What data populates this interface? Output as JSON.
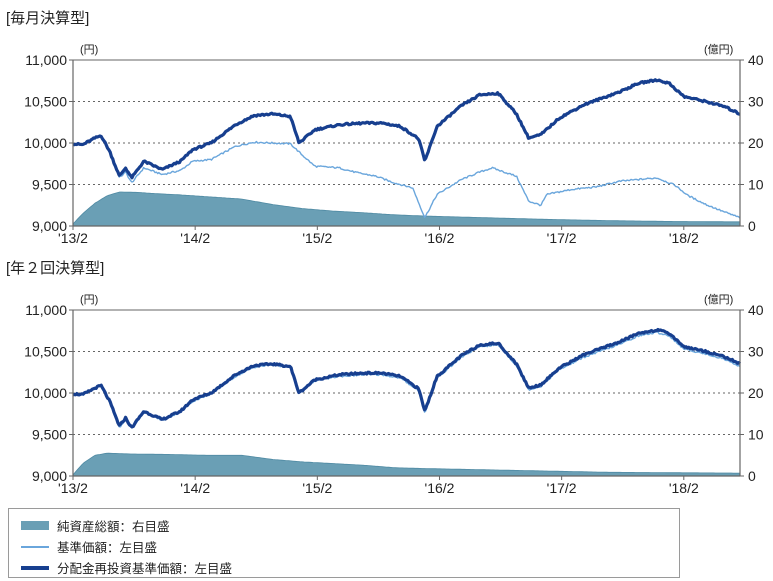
{
  "colors": {
    "area": "#6a9fb5",
    "area_edge": "#4f8aa3",
    "base_price": "#6aa6dc",
    "reinvested": "#173f8f",
    "grid": "#666666",
    "axis": "#666666"
  },
  "chart_data": [
    {
      "type": "line",
      "title": "[毎月決算型]",
      "left_unit": "(円)",
      "right_unit": "(億円)",
      "x_ticks": [
        "'13/2",
        "'14/2",
        "'15/2",
        "'16/2",
        "'17/2",
        "'18/2"
      ],
      "y_left_ticks": [
        "9,000",
        "9,500",
        "10,000",
        "10,500",
        "11,000"
      ],
      "y_right_ticks": [
        "0",
        "10",
        "20",
        "30",
        "40"
      ],
      "ylim_left": [
        9000,
        11000
      ],
      "ylim_right": [
        0,
        40
      ],
      "xlim": [
        2013.12,
        2018.58
      ],
      "grid": "horizontal-dotted",
      "series": [
        {
          "key": "net_assets",
          "kind": "area",
          "axis": "right",
          "points": [
            [
              2013.12,
              0.5
            ],
            [
              2013.2,
              3
            ],
            [
              2013.3,
              5.5
            ],
            [
              2013.4,
              7.3
            ],
            [
              2013.5,
              8.2
            ],
            [
              2013.65,
              8.1
            ],
            [
              2013.8,
              7.8
            ],
            [
              2014.0,
              7.5
            ],
            [
              2014.25,
              7.0
            ],
            [
              2014.5,
              6.5
            ],
            [
              2014.75,
              5.2
            ],
            [
              2015.0,
              4.2
            ],
            [
              2015.25,
              3.6
            ],
            [
              2015.5,
              3.2
            ],
            [
              2015.75,
              2.7
            ],
            [
              2016.0,
              2.4
            ],
            [
              2016.5,
              2.0
            ],
            [
              2017.0,
              1.6
            ],
            [
              2017.5,
              1.3
            ],
            [
              2018.0,
              1.1
            ],
            [
              2018.58,
              1.0
            ]
          ]
        },
        {
          "key": "base_price",
          "kind": "line",
          "axis": "left",
          "points": [
            [
              2013.12,
              9990
            ],
            [
              2013.2,
              9980
            ],
            [
              2013.3,
              10060
            ],
            [
              2013.35,
              10090
            ],
            [
              2013.42,
              9900
            ],
            [
              2013.5,
              9580
            ],
            [
              2013.55,
              9650
            ],
            [
              2013.6,
              9520
            ],
            [
              2013.7,
              9700
            ],
            [
              2013.85,
              9620
            ],
            [
              2014.0,
              9670
            ],
            [
              2014.1,
              9780
            ],
            [
              2014.25,
              9800
            ],
            [
              2014.45,
              9960
            ],
            [
              2014.6,
              10010
            ],
            [
              2014.75,
              10000
            ],
            [
              2014.9,
              9990
            ],
            [
              2015.0,
              9850
            ],
            [
              2015.1,
              9720
            ],
            [
              2015.3,
              9700
            ],
            [
              2015.45,
              9640
            ],
            [
              2015.6,
              9600
            ],
            [
              2015.75,
              9520
            ],
            [
              2015.9,
              9460
            ],
            [
              2016.0,
              9100
            ],
            [
              2016.1,
              9380
            ],
            [
              2016.3,
              9560
            ],
            [
              2016.45,
              9650
            ],
            [
              2016.55,
              9700
            ],
            [
              2016.75,
              9600
            ],
            [
              2016.85,
              9300
            ],
            [
              2016.95,
              9250
            ],
            [
              2017.0,
              9380
            ],
            [
              2017.2,
              9440
            ],
            [
              2017.4,
              9470
            ],
            [
              2017.6,
              9540
            ],
            [
              2017.75,
              9560
            ],
            [
              2017.9,
              9580
            ],
            [
              2018.05,
              9490
            ],
            [
              2018.15,
              9370
            ],
            [
              2018.3,
              9260
            ],
            [
              2018.45,
              9170
            ],
            [
              2018.58,
              9100
            ]
          ]
        },
        {
          "key": "reinvested",
          "kind": "line",
          "axis": "left",
          "points": [
            [
              2013.12,
              9990
            ],
            [
              2013.2,
              9980
            ],
            [
              2013.3,
              10060
            ],
            [
              2013.35,
              10090
            ],
            [
              2013.42,
              9900
            ],
            [
              2013.5,
              9600
            ],
            [
              2013.55,
              9700
            ],
            [
              2013.6,
              9580
            ],
            [
              2013.7,
              9780
            ],
            [
              2013.85,
              9680
            ],
            [
              2014.0,
              9780
            ],
            [
              2014.1,
              9920
            ],
            [
              2014.25,
              10000
            ],
            [
              2014.45,
              10220
            ],
            [
              2014.6,
              10330
            ],
            [
              2014.75,
              10350
            ],
            [
              2014.9,
              10320
            ],
            [
              2014.97,
              10000
            ],
            [
              2015.1,
              10160
            ],
            [
              2015.3,
              10220
            ],
            [
              2015.5,
              10240
            ],
            [
              2015.65,
              10240
            ],
            [
              2015.8,
              10200
            ],
            [
              2015.95,
              10050
            ],
            [
              2016.0,
              9780
            ],
            [
              2016.1,
              10200
            ],
            [
              2016.3,
              10450
            ],
            [
              2016.45,
              10580
            ],
            [
              2016.6,
              10600
            ],
            [
              2016.75,
              10350
            ],
            [
              2016.85,
              10060
            ],
            [
              2016.95,
              10100
            ],
            [
              2017.1,
              10300
            ],
            [
              2017.3,
              10460
            ],
            [
              2017.45,
              10540
            ],
            [
              2017.6,
              10620
            ],
            [
              2017.75,
              10720
            ],
            [
              2017.9,
              10760
            ],
            [
              2018.0,
              10720
            ],
            [
              2018.12,
              10560
            ],
            [
              2018.3,
              10500
            ],
            [
              2018.45,
              10440
            ],
            [
              2018.58,
              10350
            ]
          ]
        }
      ]
    },
    {
      "type": "line",
      "title": "[年２回決算型]",
      "left_unit": "(円)",
      "right_unit": "(億円)",
      "x_ticks": [
        "'13/2",
        "'14/2",
        "'15/2",
        "'16/2",
        "'17/2",
        "'18/2"
      ],
      "y_left_ticks": [
        "9,000",
        "9,500",
        "10,000",
        "10,500",
        "11,000"
      ],
      "y_right_ticks": [
        "0",
        "10",
        "20",
        "30",
        "40"
      ],
      "ylim_left": [
        9000,
        11000
      ],
      "ylim_right": [
        0,
        40
      ],
      "xlim": [
        2013.12,
        2018.58
      ],
      "grid": "horizontal-dotted",
      "series": [
        {
          "key": "net_assets",
          "kind": "area",
          "axis": "right",
          "points": [
            [
              2013.12,
              0.3
            ],
            [
              2013.2,
              3
            ],
            [
              2013.3,
              5.0
            ],
            [
              2013.4,
              5.5
            ],
            [
              2013.6,
              5.3
            ],
            [
              2013.9,
              5.2
            ],
            [
              2014.2,
              5.0
            ],
            [
              2014.5,
              5.0
            ],
            [
              2014.6,
              4.6
            ],
            [
              2014.75,
              4.0
            ],
            [
              2015.0,
              3.4
            ],
            [
              2015.25,
              3.0
            ],
            [
              2015.5,
              2.6
            ],
            [
              2015.75,
              2.0
            ],
            [
              2016.0,
              1.8
            ],
            [
              2016.5,
              1.5
            ],
            [
              2017.0,
              1.2
            ],
            [
              2017.5,
              0.9
            ],
            [
              2018.0,
              0.8
            ],
            [
              2018.58,
              0.7
            ]
          ]
        },
        {
          "key": "base_price",
          "kind": "line",
          "axis": "left",
          "points": [
            [
              2013.12,
              9990
            ],
            [
              2013.2,
              9980
            ],
            [
              2013.3,
              10060
            ],
            [
              2013.35,
              10090
            ],
            [
              2013.42,
              9900
            ],
            [
              2013.5,
              9580
            ],
            [
              2013.55,
              9680
            ],
            [
              2013.6,
              9570
            ],
            [
              2013.7,
              9770
            ],
            [
              2013.85,
              9670
            ],
            [
              2014.0,
              9770
            ],
            [
              2014.1,
              9900
            ],
            [
              2014.25,
              9990
            ],
            [
              2014.45,
              10200
            ],
            [
              2014.6,
              10310
            ],
            [
              2014.75,
              10340
            ],
            [
              2014.9,
              10310
            ],
            [
              2014.97,
              9990
            ],
            [
              2015.1,
              10150
            ],
            [
              2015.3,
              10200
            ],
            [
              2015.5,
              10220
            ],
            [
              2015.65,
              10220
            ],
            [
              2015.8,
              10180
            ],
            [
              2015.95,
              10030
            ],
            [
              2016.0,
              9760
            ],
            [
              2016.1,
              10180
            ],
            [
              2016.3,
              10430
            ],
            [
              2016.45,
              10560
            ],
            [
              2016.6,
              10580
            ],
            [
              2016.75,
              10330
            ],
            [
              2016.85,
              10040
            ],
            [
              2016.95,
              10080
            ],
            [
              2017.1,
              10280
            ],
            [
              2017.3,
              10430
            ],
            [
              2017.45,
              10510
            ],
            [
              2017.6,
              10590
            ],
            [
              2017.75,
              10690
            ],
            [
              2017.9,
              10730
            ],
            [
              2018.0,
              10690
            ],
            [
              2018.12,
              10530
            ],
            [
              2018.3,
              10470
            ],
            [
              2018.45,
              10410
            ],
            [
              2018.58,
              10320
            ]
          ]
        },
        {
          "key": "reinvested",
          "kind": "line",
          "axis": "left",
          "points": [
            [
              2013.12,
              9990
            ],
            [
              2013.2,
              9980
            ],
            [
              2013.3,
              10060
            ],
            [
              2013.35,
              10090
            ],
            [
              2013.42,
              9900
            ],
            [
              2013.5,
              9600
            ],
            [
              2013.55,
              9700
            ],
            [
              2013.6,
              9580
            ],
            [
              2013.7,
              9780
            ],
            [
              2013.85,
              9680
            ],
            [
              2014.0,
              9780
            ],
            [
              2014.1,
              9920
            ],
            [
              2014.25,
              10000
            ],
            [
              2014.45,
              10220
            ],
            [
              2014.6,
              10330
            ],
            [
              2014.75,
              10350
            ],
            [
              2014.9,
              10320
            ],
            [
              2014.97,
              10000
            ],
            [
              2015.1,
              10160
            ],
            [
              2015.3,
              10220
            ],
            [
              2015.5,
              10240
            ],
            [
              2015.65,
              10240
            ],
            [
              2015.8,
              10200
            ],
            [
              2015.95,
              10050
            ],
            [
              2016.0,
              9780
            ],
            [
              2016.1,
              10200
            ],
            [
              2016.3,
              10450
            ],
            [
              2016.45,
              10580
            ],
            [
              2016.6,
              10600
            ],
            [
              2016.75,
              10350
            ],
            [
              2016.85,
              10060
            ],
            [
              2016.95,
              10100
            ],
            [
              2017.1,
              10300
            ],
            [
              2017.3,
              10460
            ],
            [
              2017.45,
              10540
            ],
            [
              2017.6,
              10620
            ],
            [
              2017.75,
              10720
            ],
            [
              2017.9,
              10760
            ],
            [
              2018.0,
              10720
            ],
            [
              2018.12,
              10560
            ],
            [
              2018.3,
              10500
            ],
            [
              2018.45,
              10440
            ],
            [
              2018.58,
              10350
            ]
          ]
        }
      ]
    }
  ],
  "legend": {
    "items": [
      {
        "label": "純資産総額：右目盛",
        "swatch": "area"
      },
      {
        "label": "基準価額：左目盛",
        "swatch": "thin"
      },
      {
        "label": "分配金再投資基準価額：左目盛",
        "swatch": "thick"
      }
    ]
  }
}
